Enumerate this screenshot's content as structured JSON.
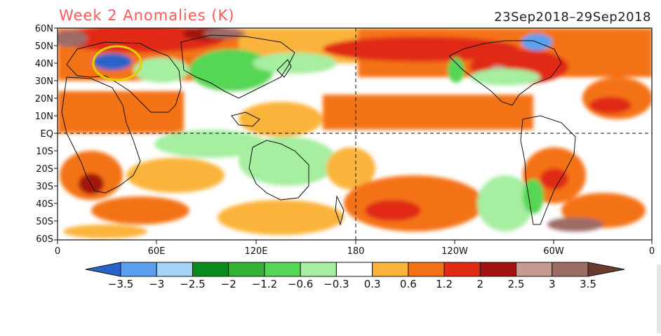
{
  "header": {
    "title": "Week 2 Anomalies (K)",
    "date_range": "23Sep2018–29Sep2018"
  },
  "axes": {
    "lat_labels": [
      "60N",
      "50N",
      "40N",
      "30N",
      "20N",
      "10N",
      "EQ",
      "10S",
      "20S",
      "30S",
      "40S",
      "50S",
      "60S"
    ],
    "lon_labels": [
      "0",
      "60E",
      "120E",
      "180",
      "120W",
      "60W",
      "0"
    ]
  },
  "colorbar": {
    "labels": [
      "-3.5",
      "-3",
      "-2.5",
      "-2",
      "-1.2",
      "-0.6",
      "-0.3",
      "0.3",
      "0.6",
      "1.2",
      "2",
      "2.5",
      "3",
      "3.5"
    ],
    "colors": [
      "#2a63c8",
      "#5aa0ee",
      "#a3d3f7",
      "#0a8a1e",
      "#32b232",
      "#55d655",
      "#a6eea0",
      "#ffffff",
      "#fbb43b",
      "#f47213",
      "#e02a12",
      "#a3120e",
      "#c59a90",
      "#9c6c66",
      "#6b3a2a"
    ]
  },
  "annotation": {
    "name": "highlight-circle",
    "color": "#e4d000"
  },
  "colors": {
    "warm_orange": "#f47213",
    "warm_light": "#fbb43b",
    "warm_red": "#e02a12",
    "dark_red": "#a3120e",
    "brown": "#9c6c66",
    "green": "#32b232",
    "light_green": "#a6eea0",
    "blue": "#5aa0ee"
  }
}
